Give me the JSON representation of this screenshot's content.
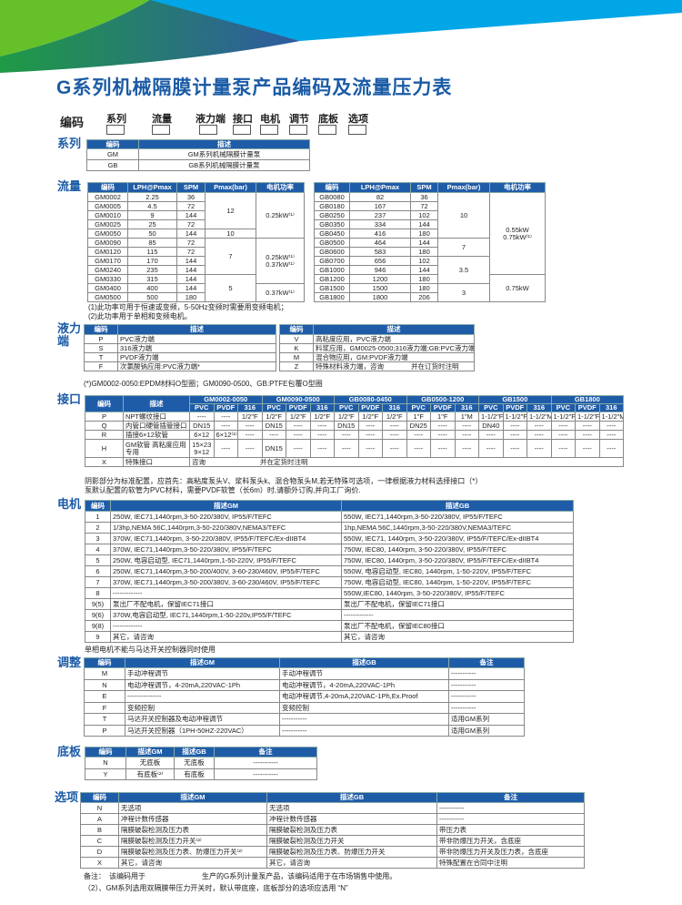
{
  "colors": {
    "header_blue": "#1f5ca8",
    "title_blue": "#1b5ba6",
    "green": "#66c02a",
    "sky": "#00a6e6"
  },
  "title": "G系列机械隔膜计量泵产品编码及流量压力表",
  "code_row": {
    "label": "编码",
    "fields": [
      "系列",
      "流量",
      "液力端",
      "接口",
      "电机",
      "调节",
      "底板",
      "选项"
    ]
  },
  "series": {
    "label": "系列",
    "headers": [
      "编码",
      "描述"
    ],
    "rows": [
      [
        "GM",
        "GM系列机械隔膜计量泵"
      ],
      [
        "GB",
        "GB系列机械隔膜计量泵"
      ]
    ]
  },
  "flow": {
    "label": "流量",
    "left": {
      "headers": [
        "编码",
        "LPH@Pmax",
        "SPM",
        "Pmax(bar)",
        "电机功率"
      ],
      "rows": [
        [
          "GM0002",
          "2.25",
          "36",
          "12",
          "0.25kW⁽¹⁾"
        ],
        [
          "GM0005",
          "4.5",
          "72",
          "12",
          "0.25kW⁽¹⁾"
        ],
        [
          "GM0010",
          "9",
          "144",
          "12",
          "0.25kW⁽¹⁾"
        ],
        [
          "GM0025",
          "25",
          "72",
          "12",
          "0.25kW⁽¹⁾"
        ],
        [
          "GM0050",
          "50",
          "144",
          "10",
          "0.25kW⁽¹⁾"
        ],
        [
          "GM0090",
          "85",
          "72",
          "7",
          "0.25kW⁽¹⁾ 0.37kW⁽¹⁾"
        ],
        [
          "GM0120",
          "115",
          "72",
          "7",
          "0.25kW⁽¹⁾ 0.37kW⁽¹⁾"
        ],
        [
          "GM0170",
          "170",
          "144",
          "7",
          "0.25kW⁽¹⁾ 0.37kW⁽¹⁾"
        ],
        [
          "GM0240",
          "235",
          "144",
          "7",
          "0.25kW⁽¹⁾ 0.37kW⁽¹⁾"
        ],
        [
          "GM0330",
          "315",
          "144",
          "5",
          "0.25kW⁽¹⁾ 0.37kW⁽¹⁾"
        ],
        [
          "GM0400",
          "400",
          "144",
          "5",
          "0.37kW⁽¹⁾"
        ],
        [
          "GM0500",
          "500",
          "180",
          "5",
          "0.37kW⁽¹⁾"
        ]
      ]
    },
    "right": {
      "headers": [
        "编码",
        "LPH@Pmax",
        "SPM",
        "Pmax(bar)",
        "电机功率"
      ],
      "rows": [
        [
          "GB0080",
          "82",
          "36",
          "10",
          "0.55kW 0.75kW⁽¹⁾"
        ],
        [
          "GB0180",
          "167",
          "72",
          "10",
          "0.55kW 0.75kW⁽¹⁾"
        ],
        [
          "GB0250",
          "237",
          "102",
          "10",
          "0.55kW 0.75kW⁽¹⁾"
        ],
        [
          "GB0350",
          "334",
          "144",
          "10",
          "0.55kW 0.75kW⁽¹⁾"
        ],
        [
          "GB0450",
          "416",
          "180",
          "10",
          "0.55kW 0.75kW⁽¹⁾"
        ],
        [
          "GB0500",
          "464",
          "144",
          "7",
          "0.55kW 0.75kW⁽¹⁾"
        ],
        [
          "GB0600",
          "583",
          "180",
          "7",
          "0.55kW 0.75kW⁽¹⁾"
        ],
        [
          "GB0700",
          "656",
          "102",
          "3.5",
          "0.55kW 0.75kW⁽¹⁾"
        ],
        [
          "GB1000",
          "946",
          "144",
          "3.5",
          "0.55kW 0.75kW⁽¹⁾"
        ],
        [
          "GB1200",
          "1200",
          "180",
          "3.5",
          "0.75kW"
        ],
        [
          "GB1500",
          "1500",
          "180",
          "3",
          "0.75kW"
        ],
        [
          "GB1800",
          "1800",
          "206",
          "3",
          "0.75kW"
        ]
      ]
    },
    "notes": [
      "(1)此功率可用于恒速或变频，5-50Hz变频时需要用变频电机；",
      "(2)此功率用于单相和变频电机。"
    ]
  },
  "wet_end": {
    "label": "液力端",
    "left": {
      "headers": [
        "编码",
        "描述"
      ],
      "rows": [
        [
          "P",
          "PVC液力端"
        ],
        [
          "S",
          "316液力端"
        ],
        [
          "T",
          "PVDF液力端"
        ],
        [
          "F",
          "次氯酸钠应用:PVC液力端*"
        ]
      ]
    },
    "right": {
      "headers": [
        "编码",
        "描述"
      ],
      "rows": [
        [
          "V",
          "高粘度应用，PVC液力端"
        ],
        [
          "K",
          "料浆应用，GM0025-0500;316液力端;GB:PVC液力端"
        ],
        [
          "M",
          "混合物应用，GM:PVDF液力端"
        ],
        [
          "Z",
          "特殊材料液力端，咨询　　　　并在订货时注明"
        ]
      ]
    },
    "note": "(*)GM0002-0050:EPDM材料O型圈；GM0090-0500、GB:PTFE包覆O型圈"
  },
  "connection": {
    "label": "接口",
    "headers": [
      "编码",
      "描述"
    ],
    "groups": [
      "GM0002-0050",
      "GM0090-0500",
      "GB0080-0450",
      "GB0500-1200",
      "GB1500",
      "GB1800"
    ],
    "materials": [
      "PVC",
      "PVDF",
      "316"
    ],
    "rows": [
      [
        "P",
        "NPT螺纹接口",
        "----",
        "----",
        "1/2\"F",
        "1/2\"F",
        "1/2\"F",
        "1/2\"F",
        "1/2\"F",
        "1/2\"F",
        "1/2\"F",
        "1\"F",
        "1\"F",
        "1\"M",
        "1-1/2\"F",
        "1-1/2\"F",
        "1-1/2\"M",
        "1-1/2\"F",
        "1-1/2\"F",
        "1-1/2\"M"
      ],
      [
        "Q",
        "内管口硬管插管接口",
        "DN15",
        "----",
        "----",
        "DN15",
        "----",
        "----",
        "DN15",
        "----",
        "----",
        "DN25",
        "----",
        "----",
        "DN40",
        "----",
        "----",
        "----",
        "----",
        "----"
      ],
      [
        "R",
        "插接6×12软管",
        "6×12",
        "6×12⁽¹⁾",
        "----",
        "----",
        "----",
        "----",
        "----",
        "----",
        "----",
        "----",
        "----",
        "----",
        "----",
        "----",
        "----",
        "----",
        "----",
        "----"
      ],
      [
        "H",
        "GM软管 高粘度应用专用",
        "15×23 9×12",
        "----",
        "----",
        "DN15",
        "----",
        "----",
        "----",
        "----",
        "----",
        "----",
        "----",
        "----",
        "----",
        "----",
        "----",
        "----",
        "----",
        "----"
      ]
    ],
    "special": {
      "code": "X",
      "desc": "特殊接口",
      "text": "咨询　　　　　　　　并在定货时注明"
    },
    "notes": [
      "阴影部分为标准配置，应首先：高粘度泵头V、浆料泵头k、混合物泵头M,若无特殊可选项，一律根据液力材料选择接口（*）",
      "泵默认配置的软管为PVC材料，需要PVDF软管（长6m）时,请额外订购,并向工厂询价."
    ]
  },
  "motor": {
    "label": "电机",
    "headers": [
      "编码",
      "描述GM",
      "描述GB"
    ],
    "rows": [
      [
        "1",
        "250W, IEC71,1440rpm,3-50-220/380V, IP55/F/TEFC",
        "550W, IEC71,1440rpm,3-50-220/380V, IP55/F/TEFC"
      ],
      [
        "2",
        "1/3hp,NEMA 56C,1440rpm,3-50-220/380V,NEMA3/TEFC",
        "1hp,NEMA 56C,1440rpm,3-50-220/380V,NEMA3/TEFC"
      ],
      [
        "3",
        "370W, IEC71,1440rpm, 3-50-220/380V, IP55/F/TEFC/Ex-dIIBT4",
        "550W, IEC71, 1440rpm, 3-50-220/380V, IP55/F/TEFC/Ex-dIIBT4"
      ],
      [
        "4",
        "370W, IEC71,1440rpm,3-50-220/380V, IP55/F/TEFC",
        "750W, IEC80, 1440rpm, 3-50-220/380V, IP55/F/TEFC"
      ],
      [
        "5",
        "250W, 电容启动型, IEC71,1440rpm,1-50-220V, IP55/F/TEFC",
        "750W, IEC80, 1440rpm, 3-50-220/380V, IP55/F/TEFC/Ex-dIIBT4"
      ],
      [
        "6",
        "250W, IEC71,1440rpm,3-50-200/400V, 3-60-230/460V, IP55/F/TEFC",
        "550W, 电容启动型, IEC80, 1440rpm, 1-50-220V, IP55/F/TEFC"
      ],
      [
        "7",
        "370W, IEC71,1440rpm,3-50-200/380V, 3-60-230/460V, IP55/F/TEFC",
        "750W, 电容启动型, IEC80, 1440rpm, 1-50-220V, IP55/F/TEFC"
      ],
      [
        "8",
        "-------------",
        "550W,IEC80, 1440rpm, 3-50-220/380V, IP55/F/TEFC"
      ],
      [
        "9(5)",
        "泵出厂不配电机，保留IEC71接口",
        "泵出厂不配电机，保留IEC71接口"
      ],
      [
        "9(6)",
        "370W,电容启动型, IEC71,1440rpm,1-50-220v,IP55/F/TEFC",
        "-------------"
      ],
      [
        "9(8)",
        "-------------",
        "泵出厂不配电机，保留IEC80接口"
      ],
      [
        "9",
        "其它，请咨询",
        "其它，请咨询"
      ]
    ],
    "note": "单相电机不能与马达开关控制器同时使用"
  },
  "adjust": {
    "label": "调整",
    "headers": [
      "编码",
      "描述GM",
      "描述GB",
      "备注"
    ],
    "rows": [
      [
        "M",
        "手动冲程调节",
        "手动冲程调节",
        "-----------"
      ],
      [
        "N",
        "电动冲程调节，4-20mA,220VAC-1Ph",
        "电动冲程调节，4-20mA,220VAC-1Ph",
        "-----------"
      ],
      [
        "E",
        "---------------",
        "电动冲程调节,4-20mA,220VAC-1Ph,Ex.Proof",
        "-----------"
      ],
      [
        "F",
        "变频控制",
        "变频控制",
        "-----------"
      ],
      [
        "T",
        "马达开关控制器及电动冲程调节",
        "-----------",
        "适用GM系列"
      ],
      [
        "P",
        "马达开关控制器（1PH-50HZ-220VAC）",
        "-----------",
        "适用GM系列"
      ]
    ]
  },
  "baseplate": {
    "label": "底板",
    "headers": [
      "编码",
      "描述GM",
      "描述GB",
      "备注"
    ],
    "rows": [
      [
        "N",
        "无底板",
        "无底板",
        "-----------"
      ],
      [
        "Y",
        "有底板⁽²⁾",
        "有底板",
        "-----------"
      ]
    ]
  },
  "options": {
    "label": "选项",
    "headers": [
      "编码",
      "描述GM",
      "描述GB",
      "备注"
    ],
    "rows": [
      [
        "N",
        "无选项",
        "无选项",
        "-----------"
      ],
      [
        "A",
        "冲程计数传感器",
        "冲程计数传感器",
        "-----------"
      ],
      [
        "B",
        "隔膜破裂检测及压力表",
        "隔膜破裂检测及压力表",
        "带压力表"
      ],
      [
        "C",
        "隔膜破裂检测及压力开关⁽²⁾",
        "隔膜破裂检测及压力开关",
        "带非防爆压力开关，含底座"
      ],
      [
        "D",
        "隔膜破裂检测及压力表、防爆压力开关⁽²⁾",
        "隔膜破裂检测及压力表、防爆压力开关",
        "带非防爆压力开关及压力表，含底座"
      ],
      [
        "X",
        "其它，请咨询",
        "其它，请咨询",
        "特殊配置在合同中注明"
      ]
    ],
    "notes": [
      "备注：　该编码用于",
      "生产的G系列计量泵产品，该编码适用于在市场销售中使用。",
      "（2）、GM系列选用双隔膜带压力开关时，默认带底座，底板部分的选项应选用 “N”"
    ]
  }
}
